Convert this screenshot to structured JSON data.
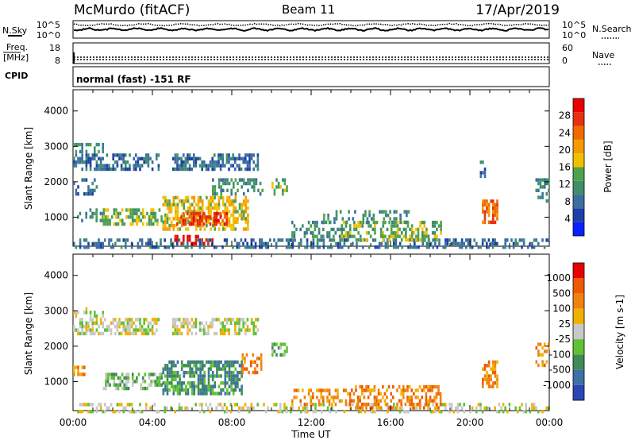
{
  "header": {
    "station": "McMurdo (fitACF)",
    "beam": "Beam 11",
    "date": "17/Apr/2019"
  },
  "top_panels": {
    "nsky_label": "N.Sky",
    "nsearch_label": "N.Search",
    "nsky_ticks": [
      "10^5",
      "10^0"
    ],
    "nsearch_ticks": [
      "10^5",
      "10^0"
    ],
    "freq_label_1": "Freq.",
    "freq_label_2": "[MHz]",
    "freq_ticks": [
      "18",
      "8"
    ],
    "nave_label": "Nave",
    "nave_ticks": [
      "60",
      "0"
    ],
    "cpid_label": "CPID",
    "cpid_text": "normal (fast) -151 RF"
  },
  "chart_data": [
    {
      "type": "heatmap",
      "name": "power",
      "ylabel": "Slant Range [km]",
      "xlabel": "Time UT",
      "ylim": [
        180,
        4600
      ],
      "xlim_hours": [
        0,
        24
      ],
      "x_ticks": [
        "00:00",
        "04:00",
        "08:00",
        "12:00",
        "16:00",
        "20:00",
        "00:00"
      ],
      "y_ticks": [
        1000,
        2000,
        3000,
        4000
      ],
      "colorbar": {
        "label": "Power [dB]",
        "ticks": [
          4,
          8,
          12,
          16,
          20,
          24,
          28
        ],
        "range": [
          0,
          32
        ],
        "colors": [
          "#0a1fff",
          "#1e3fa8",
          "#3c6ea0",
          "#3d8f6a",
          "#4fa24c",
          "#f0c000",
          "#f59a00",
          "#f06a00",
          "#e83010",
          "#ea0000"
        ]
      },
      "regions": [
        {
          "t0": 0.0,
          "t1": 24.0,
          "r0": 180,
          "r1": 400,
          "level": 2,
          "density": 0.45
        },
        {
          "t0": 0.0,
          "t1": 1.2,
          "r0": 1700,
          "r1": 2100,
          "level": 2,
          "density": 0.35
        },
        {
          "t0": 0.0,
          "t1": 4.3,
          "r0": 2400,
          "r1": 2800,
          "level": 2,
          "density": 0.55
        },
        {
          "t0": 0.0,
          "t1": 1.5,
          "r0": 2850,
          "r1": 3100,
          "level": 3,
          "density": 0.45
        },
        {
          "t0": 5.0,
          "t1": 9.3,
          "r0": 2400,
          "r1": 2800,
          "level": 2,
          "density": 0.6
        },
        {
          "t0": 0.2,
          "t1": 1.5,
          "r0": 900,
          "r1": 1250,
          "level": 3,
          "density": 0.5
        },
        {
          "t0": 1.5,
          "t1": 4.5,
          "r0": 800,
          "r1": 1250,
          "level": 4,
          "density": 0.55
        },
        {
          "t0": 4.5,
          "t1": 8.8,
          "r0": 700,
          "r1": 1600,
          "level": 5,
          "density": 0.65
        },
        {
          "t0": 5.2,
          "t1": 7.8,
          "r0": 800,
          "r1": 1150,
          "level": 8,
          "density": 0.55
        },
        {
          "t0": 5.0,
          "t1": 7.0,
          "r0": 300,
          "r1": 500,
          "level": 9,
          "density": 0.45
        },
        {
          "t0": 7.0,
          "t1": 9.5,
          "r0": 1700,
          "r1": 2100,
          "level": 3,
          "density": 0.35
        },
        {
          "t0": 10.0,
          "t1": 10.8,
          "r0": 1700,
          "r1": 2100,
          "level": 4,
          "density": 0.55
        },
        {
          "t0": 11.0,
          "t1": 14.0,
          "r0": 500,
          "r1": 900,
          "level": 3,
          "density": 0.35
        },
        {
          "t0": 13.5,
          "t1": 18.5,
          "r0": 350,
          "r1": 900,
          "level": 4,
          "density": 0.45
        },
        {
          "t0": 12.5,
          "t1": 17.0,
          "r0": 900,
          "r1": 1200,
          "level": 3,
          "density": 0.3
        },
        {
          "t0": 20.6,
          "t1": 21.4,
          "r0": 900,
          "r1": 1500,
          "level": 7,
          "density": 0.7
        },
        {
          "t0": 20.5,
          "t1": 20.8,
          "r0": 2200,
          "r1": 2600,
          "level": 2,
          "density": 0.5
        },
        {
          "t0": 23.3,
          "t1": 24.0,
          "r0": 1500,
          "r1": 2100,
          "level": 3,
          "density": 0.45
        }
      ]
    },
    {
      "type": "heatmap",
      "name": "velocity",
      "ylabel": "Slant Range [km]",
      "xlabel": "Time UT",
      "ylim": [
        180,
        4600
      ],
      "xlim_hours": [
        0,
        24
      ],
      "x_ticks": [
        "00:00",
        "04:00",
        "08:00",
        "12:00",
        "16:00",
        "20:00",
        "00:00"
      ],
      "y_ticks": [
        1000,
        2000,
        3000,
        4000
      ],
      "colorbar": {
        "label": "Velocity [m s-1]",
        "ticks": [
          "1000",
          "500",
          "100",
          "25",
          "-25",
          "-100",
          "-500",
          "-1000"
        ],
        "range": [
          -1200,
          1200
        ],
        "colors": [
          "#2b45b5",
          "#3d6fa8",
          "#3f8a57",
          "#5fc235",
          "#c8c8c8",
          "#f0b000",
          "#f08010",
          "#ee5a00",
          "#e80000"
        ]
      },
      "regions": [
        {
          "t0": 0.0,
          "t1": 24.0,
          "r0": 180,
          "r1": 400,
          "level": 4,
          "density": 0.35
        },
        {
          "t0": 0.0,
          "t1": 4.3,
          "r0": 2400,
          "r1": 2800,
          "level": 4,
          "density": 0.55
        },
        {
          "t0": 0.0,
          "t1": 1.5,
          "r0": 2850,
          "r1": 3100,
          "level": 4,
          "density": 0.45
        },
        {
          "t0": 5.0,
          "t1": 9.3,
          "r0": 2400,
          "r1": 2800,
          "level": 4,
          "density": 0.6
        },
        {
          "t0": 0.0,
          "t1": 0.6,
          "r0": 1200,
          "r1": 1450,
          "level": 6,
          "density": 0.6
        },
        {
          "t0": 1.5,
          "t1": 4.5,
          "r0": 800,
          "r1": 1250,
          "level": 3,
          "density": 0.55
        },
        {
          "t0": 4.5,
          "t1": 8.5,
          "r0": 700,
          "r1": 1600,
          "level": 2,
          "density": 0.65
        },
        {
          "t0": 8.5,
          "t1": 9.5,
          "r0": 1300,
          "r1": 1800,
          "level": 6,
          "density": 0.45
        },
        {
          "t0": 10.0,
          "t1": 10.8,
          "r0": 1800,
          "r1": 2100,
          "level": 3,
          "density": 0.55
        },
        {
          "t0": 11.0,
          "t1": 14.0,
          "r0": 400,
          "r1": 800,
          "level": 6,
          "density": 0.4
        },
        {
          "t0": 14.0,
          "t1": 18.5,
          "r0": 300,
          "r1": 900,
          "level": 6,
          "density": 0.5
        },
        {
          "t0": 20.6,
          "t1": 21.4,
          "r0": 900,
          "r1": 1600,
          "level": 6,
          "density": 0.75
        },
        {
          "t0": 23.3,
          "t1": 24.0,
          "r0": 1500,
          "r1": 2100,
          "level": 6,
          "density": 0.4
        }
      ]
    }
  ]
}
